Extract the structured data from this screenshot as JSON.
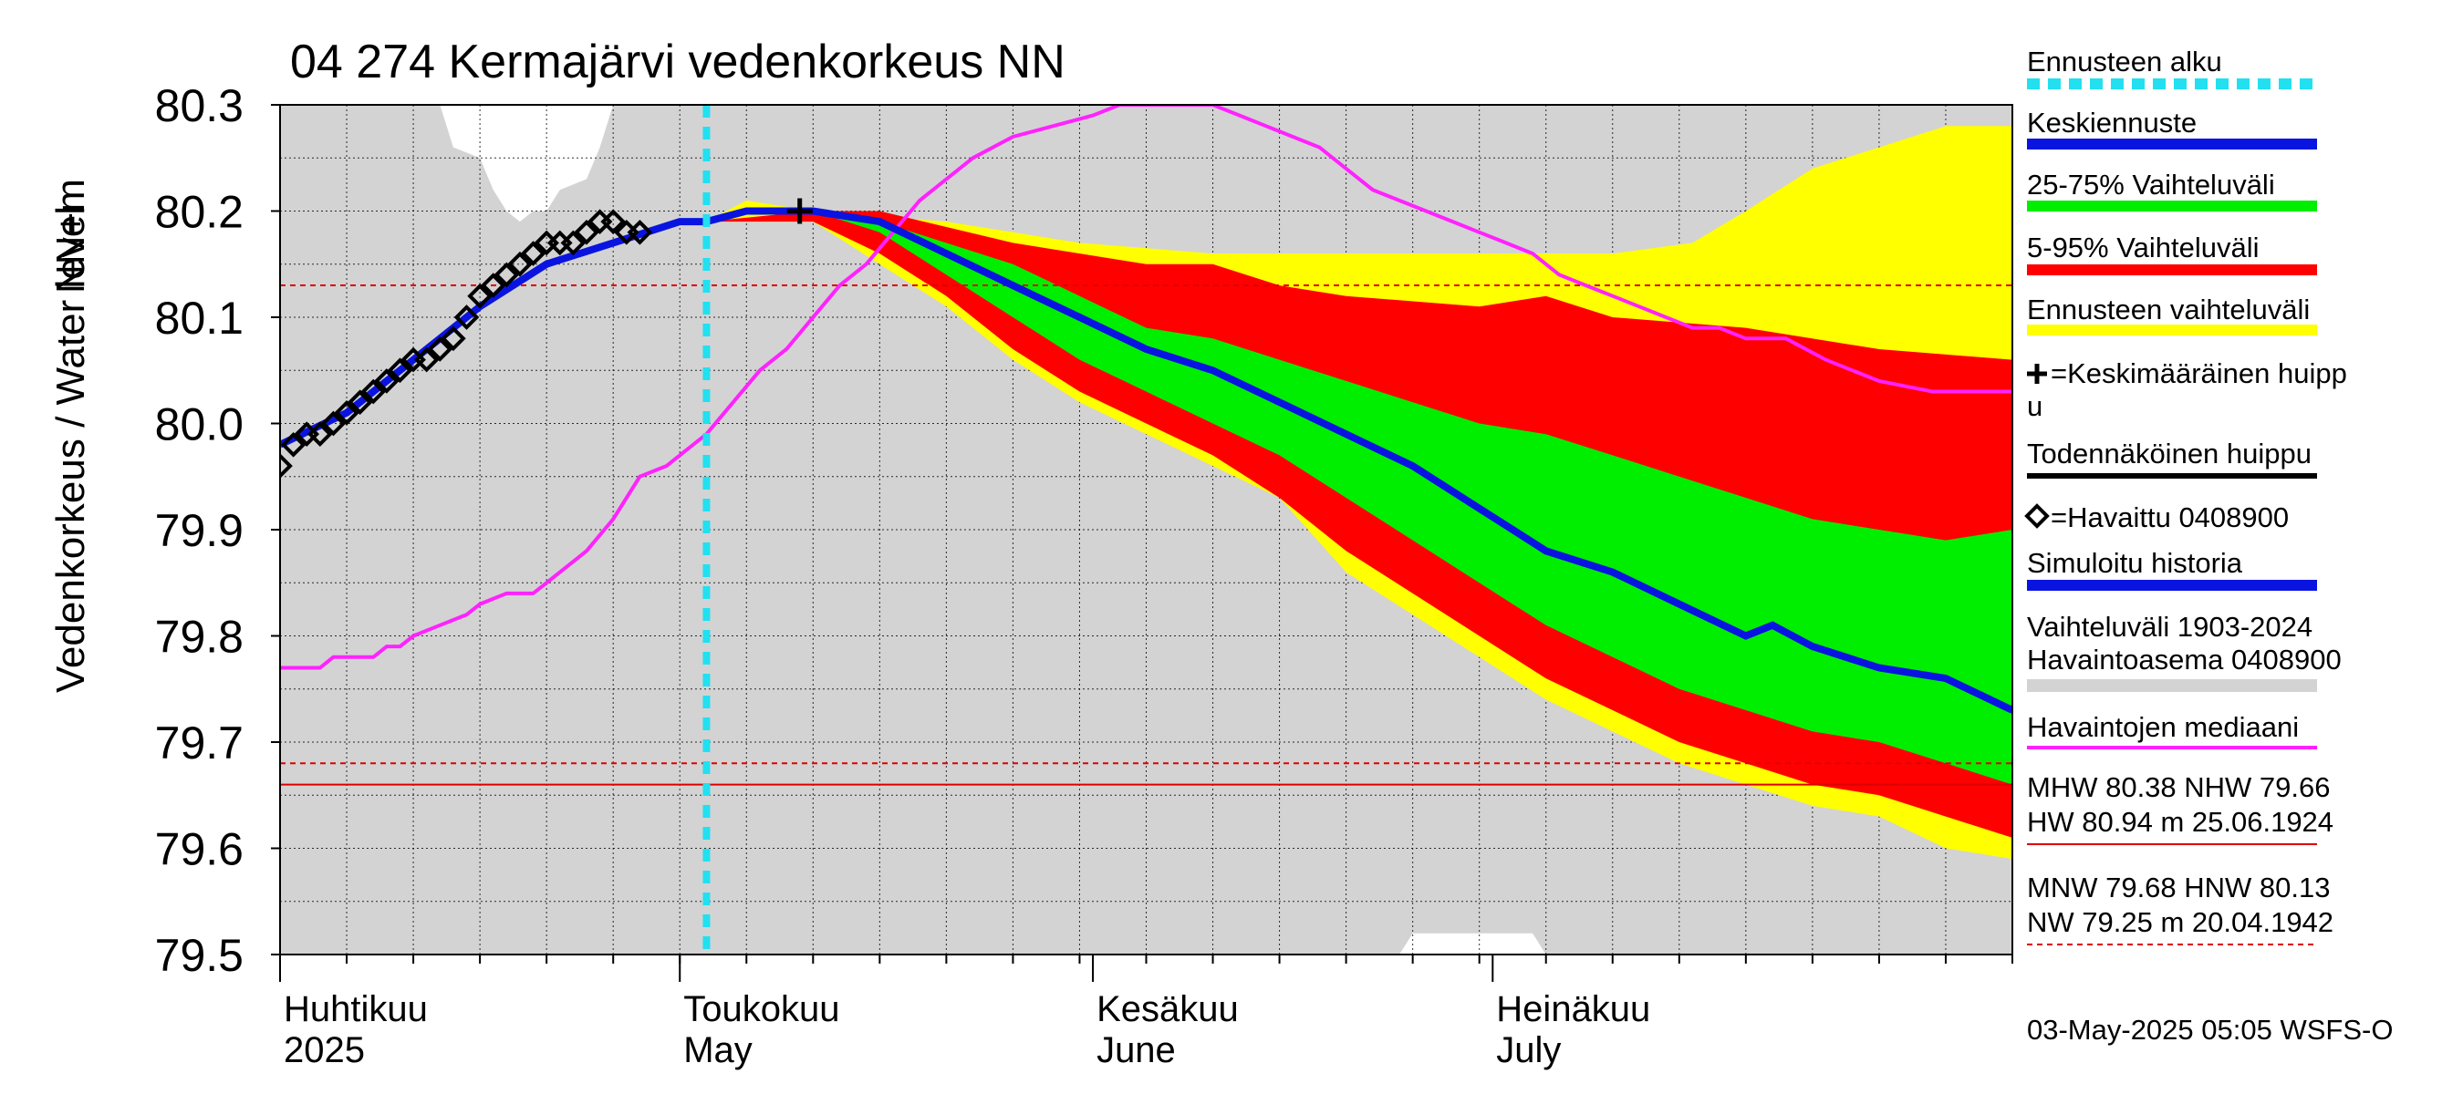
{
  "chart_data": {
    "type": "area",
    "title": "04 274 Kermajärvi vedenkorkeus NN",
    "ylabel": "Vedenkorkeus / Water level",
    "yunit": "NN+m",
    "ylim": [
      79.5,
      80.3
    ],
    "yticks": [
      "80.3",
      "80.2",
      "80.1",
      "80.0",
      "79.9",
      "79.8",
      "79.7",
      "79.6",
      "79.5"
    ],
    "x_start_day": 0,
    "x_end_day": 130,
    "months": [
      {
        "day": 0,
        "fi": "Huhtikuu",
        "en": "2025"
      },
      {
        "day": 30,
        "fi": "Toukokuu",
        "en": "May"
      },
      {
        "day": 61,
        "fi": "Kesäkuu",
        "en": "June"
      },
      {
        "day": 91,
        "fi": "Heinäkuu",
        "en": "July"
      }
    ],
    "forecast_start_day": 32,
    "colors": {
      "forecast_start": "#22e0f0",
      "median_forecast": "#0a14e0",
      "band_25_75": "#00ee00",
      "band_5_95": "#ff0000",
      "forecast_range": "#ffff00",
      "observed": "#000000",
      "median_obs": "#ff22ff",
      "history_range": "#d3d3d3",
      "reference_line": "#dd0000"
    },
    "reference_lines": [
      {
        "name": "HNW",
        "value": 80.13,
        "style": "dashed"
      },
      {
        "name": "MNW",
        "value": 79.68,
        "style": "dashed"
      },
      {
        "name": "NHW",
        "value": 79.66,
        "style": "solid"
      }
    ],
    "history_range": {
      "upper": [
        [
          0,
          80.3
        ],
        [
          12,
          80.3
        ],
        [
          13,
          80.26
        ],
        [
          15,
          80.25
        ],
        [
          16,
          80.22
        ],
        [
          17,
          80.2
        ],
        [
          18,
          80.19
        ],
        [
          19,
          80.2
        ],
        [
          20,
          80.2
        ],
        [
          21,
          80.22
        ],
        [
          23,
          80.23
        ],
        [
          24,
          80.26
        ],
        [
          25,
          80.3
        ],
        [
          130,
          80.3
        ]
      ],
      "lower": [
        [
          0,
          79.5
        ],
        [
          84,
          79.5
        ],
        [
          85,
          79.52
        ],
        [
          94,
          79.52
        ],
        [
          95,
          79.5
        ],
        [
          130,
          79.5
        ]
      ]
    },
    "series": [
      {
        "name": "forecast_range_upper",
        "points": [
          [
            32,
            80.19
          ],
          [
            35,
            80.21
          ],
          [
            40,
            80.2
          ],
          [
            50,
            80.19
          ],
          [
            60,
            80.17
          ],
          [
            70,
            80.16
          ],
          [
            80,
            80.16
          ],
          [
            90,
            80.16
          ],
          [
            100,
            80.16
          ],
          [
            106,
            80.17
          ],
          [
            110,
            80.2
          ],
          [
            115,
            80.24
          ],
          [
            120,
            80.26
          ],
          [
            125,
            80.28
          ],
          [
            130,
            80.28
          ]
        ]
      },
      {
        "name": "band_5_95_upper",
        "points": [
          [
            32,
            80.19
          ],
          [
            40,
            80.2
          ],
          [
            45,
            80.2
          ],
          [
            55,
            80.17
          ],
          [
            65,
            80.15
          ],
          [
            70,
            80.15
          ],
          [
            75,
            80.13
          ],
          [
            80,
            80.12
          ],
          [
            90,
            80.11
          ],
          [
            95,
            80.12
          ],
          [
            100,
            80.1
          ],
          [
            110,
            80.09
          ],
          [
            120,
            80.07
          ],
          [
            130,
            80.06
          ]
        ]
      },
      {
        "name": "band_25_75_upper",
        "points": [
          [
            32,
            80.19
          ],
          [
            40,
            80.2
          ],
          [
            45,
            80.19
          ],
          [
            55,
            80.15
          ],
          [
            60,
            80.12
          ],
          [
            65,
            80.09
          ],
          [
            70,
            80.08
          ],
          [
            75,
            80.06
          ],
          [
            80,
            80.04
          ],
          [
            85,
            80.02
          ],
          [
            90,
            80.0
          ],
          [
            95,
            79.99
          ],
          [
            100,
            79.97
          ],
          [
            105,
            79.95
          ],
          [
            110,
            79.93
          ],
          [
            115,
            79.91
          ],
          [
            120,
            79.9
          ],
          [
            125,
            79.89
          ],
          [
            130,
            79.9
          ]
        ]
      },
      {
        "name": "median_forecast",
        "points": [
          [
            32,
            80.19
          ],
          [
            35,
            80.2
          ],
          [
            40,
            80.2
          ],
          [
            45,
            80.19
          ],
          [
            50,
            80.16
          ],
          [
            55,
            80.13
          ],
          [
            60,
            80.1
          ],
          [
            65,
            80.07
          ],
          [
            70,
            80.05
          ],
          [
            75,
            80.02
          ],
          [
            80,
            79.99
          ],
          [
            85,
            79.96
          ],
          [
            90,
            79.92
          ],
          [
            95,
            79.88
          ],
          [
            100,
            79.86
          ],
          [
            105,
            79.83
          ],
          [
            110,
            79.8
          ],
          [
            112,
            79.81
          ],
          [
            115,
            79.79
          ],
          [
            120,
            79.77
          ],
          [
            125,
            79.76
          ],
          [
            130,
            79.73
          ]
        ]
      },
      {
        "name": "band_25_75_lower",
        "points": [
          [
            32,
            80.19
          ],
          [
            40,
            80.2
          ],
          [
            45,
            80.18
          ],
          [
            50,
            80.14
          ],
          [
            55,
            80.1
          ],
          [
            60,
            80.06
          ],
          [
            65,
            80.03
          ],
          [
            70,
            80.0
          ],
          [
            75,
            79.97
          ],
          [
            80,
            79.93
          ],
          [
            85,
            79.89
          ],
          [
            90,
            79.85
          ],
          [
            95,
            79.81
          ],
          [
            100,
            79.78
          ],
          [
            105,
            79.75
          ],
          [
            110,
            79.73
          ],
          [
            115,
            79.71
          ],
          [
            120,
            79.7
          ],
          [
            125,
            79.68
          ],
          [
            130,
            79.66
          ]
        ]
      },
      {
        "name": "band_5_95_lower",
        "points": [
          [
            32,
            80.19
          ],
          [
            40,
            80.19
          ],
          [
            45,
            80.16
          ],
          [
            50,
            80.12
          ],
          [
            55,
            80.07
          ],
          [
            60,
            80.03
          ],
          [
            65,
            80.0
          ],
          [
            70,
            79.97
          ],
          [
            75,
            79.93
          ],
          [
            80,
            79.88
          ],
          [
            85,
            79.84
          ],
          [
            90,
            79.8
          ],
          [
            95,
            79.76
          ],
          [
            100,
            79.73
          ],
          [
            105,
            79.7
          ],
          [
            110,
            79.68
          ],
          [
            115,
            79.66
          ],
          [
            120,
            79.65
          ],
          [
            125,
            79.63
          ],
          [
            130,
            79.61
          ]
        ]
      },
      {
        "name": "forecast_range_lower",
        "points": [
          [
            32,
            80.19
          ],
          [
            40,
            80.19
          ],
          [
            45,
            80.15
          ],
          [
            50,
            80.11
          ],
          [
            55,
            80.06
          ],
          [
            60,
            80.02
          ],
          [
            65,
            79.99
          ],
          [
            70,
            79.96
          ],
          [
            75,
            79.93
          ],
          [
            80,
            79.86
          ],
          [
            85,
            79.82
          ],
          [
            90,
            79.78
          ],
          [
            95,
            79.74
          ],
          [
            100,
            79.71
          ],
          [
            105,
            79.68
          ],
          [
            110,
            79.66
          ],
          [
            115,
            79.64
          ],
          [
            120,
            79.63
          ],
          [
            125,
            79.6
          ],
          [
            130,
            79.59
          ]
        ]
      },
      {
        "name": "simulated_history",
        "points": [
          [
            0,
            79.98
          ],
          [
            5,
            80.01
          ],
          [
            10,
            80.06
          ],
          [
            15,
            80.11
          ],
          [
            20,
            80.15
          ],
          [
            25,
            80.17
          ],
          [
            30,
            80.19
          ],
          [
            32,
            80.19
          ]
        ]
      },
      {
        "name": "observed_0408900",
        "points": [
          [
            0,
            79.96
          ],
          [
            1,
            79.98
          ],
          [
            2,
            79.99
          ],
          [
            3,
            79.99
          ],
          [
            4,
            80.0
          ],
          [
            5,
            80.01
          ],
          [
            6,
            80.02
          ],
          [
            7,
            80.03
          ],
          [
            8,
            80.04
          ],
          [
            9,
            80.05
          ],
          [
            10,
            80.06
          ],
          [
            11,
            80.06
          ],
          [
            12,
            80.07
          ],
          [
            13,
            80.08
          ],
          [
            14,
            80.1
          ],
          [
            15,
            80.12
          ],
          [
            16,
            80.13
          ],
          [
            17,
            80.14
          ],
          [
            18,
            80.15
          ],
          [
            19,
            80.16
          ],
          [
            20,
            80.17
          ],
          [
            21,
            80.17
          ],
          [
            22,
            80.17
          ],
          [
            23,
            80.18
          ],
          [
            24,
            80.19
          ],
          [
            25,
            80.19
          ],
          [
            26,
            80.18
          ],
          [
            27,
            80.18
          ]
        ]
      },
      {
        "name": "median_observations",
        "points": [
          [
            0,
            79.77
          ],
          [
            3,
            79.77
          ],
          [
            4,
            79.78
          ],
          [
            7,
            79.78
          ],
          [
            8,
            79.79
          ],
          [
            9,
            79.79
          ],
          [
            10,
            79.8
          ],
          [
            12,
            79.81
          ],
          [
            14,
            79.82
          ],
          [
            15,
            79.83
          ],
          [
            17,
            79.84
          ],
          [
            19,
            79.84
          ],
          [
            21,
            79.86
          ],
          [
            23,
            79.88
          ],
          [
            25,
            79.91
          ],
          [
            27,
            79.95
          ],
          [
            29,
            79.96
          ],
          [
            30,
            79.97
          ],
          [
            32,
            79.99
          ],
          [
            34,
            80.02
          ],
          [
            36,
            80.05
          ],
          [
            38,
            80.07
          ],
          [
            40,
            80.1
          ],
          [
            42,
            80.13
          ],
          [
            44,
            80.15
          ],
          [
            46,
            80.18
          ],
          [
            48,
            80.21
          ],
          [
            50,
            80.23
          ],
          [
            52,
            80.25
          ],
          [
            55,
            80.27
          ],
          [
            58,
            80.28
          ],
          [
            61,
            80.29
          ],
          [
            63,
            80.3
          ],
          [
            70,
            80.3
          ],
          [
            72,
            80.29
          ],
          [
            74,
            80.28
          ],
          [
            76,
            80.27
          ],
          [
            78,
            80.26
          ],
          [
            80,
            80.24
          ],
          [
            82,
            80.22
          ],
          [
            84,
            80.21
          ],
          [
            86,
            80.2
          ],
          [
            88,
            80.19
          ],
          [
            90,
            80.18
          ],
          [
            92,
            80.17
          ],
          [
            94,
            80.16
          ],
          [
            96,
            80.14
          ],
          [
            98,
            80.13
          ],
          [
            100,
            80.12
          ],
          [
            102,
            80.11
          ],
          [
            104,
            80.1
          ],
          [
            106,
            80.09
          ],
          [
            108,
            80.09
          ],
          [
            110,
            80.08
          ],
          [
            113,
            80.08
          ],
          [
            116,
            80.06
          ],
          [
            118,
            80.05
          ],
          [
            120,
            80.04
          ],
          [
            124,
            80.03
          ],
          [
            130,
            80.03
          ]
        ]
      }
    ],
    "peak_marker": {
      "name": "Keskimääräinen huippu",
      "day": 39,
      "value": 80.2
    }
  },
  "legend": [
    {
      "label": "Ennusteen alku",
      "swatch": "dashed-cyan"
    },
    {
      "label": "Keskiennuste",
      "swatch": "blue"
    },
    {
      "label": "25-75% Vaihteluväli",
      "swatch": "green"
    },
    {
      "label": "5-95% Vaihteluväli",
      "swatch": "red"
    },
    {
      "label": "Ennusteen vaihteluväli",
      "swatch": "yellow"
    },
    {
      "label": "=Keskimääräinen huipp",
      "label2": "u",
      "swatch": "none"
    },
    {
      "label": "Todennäköinen huippu",
      "swatch": "black"
    },
    {
      "label": "=Havaittu 0408900",
      "swatch": "none"
    },
    {
      "label": "Simuloitu historia",
      "swatch": "blue"
    },
    {
      "label": "Vaihteluväli 1903-2024",
      "label2": " Havaintoasema 0408900",
      "swatch": "gray"
    },
    {
      "label": "Havaintojen mediaani",
      "swatch": "magenta"
    }
  ],
  "stats": {
    "line1": "MHW  80.38 NHW  79.66",
    "line2": "HW  80.94 m 25.06.1924",
    "line3": "MNW  79.68 HNW  80.13",
    "line4": "NW  79.25 m 20.04.1942"
  },
  "footer": "03-May-2025 05:05 WSFS-O"
}
